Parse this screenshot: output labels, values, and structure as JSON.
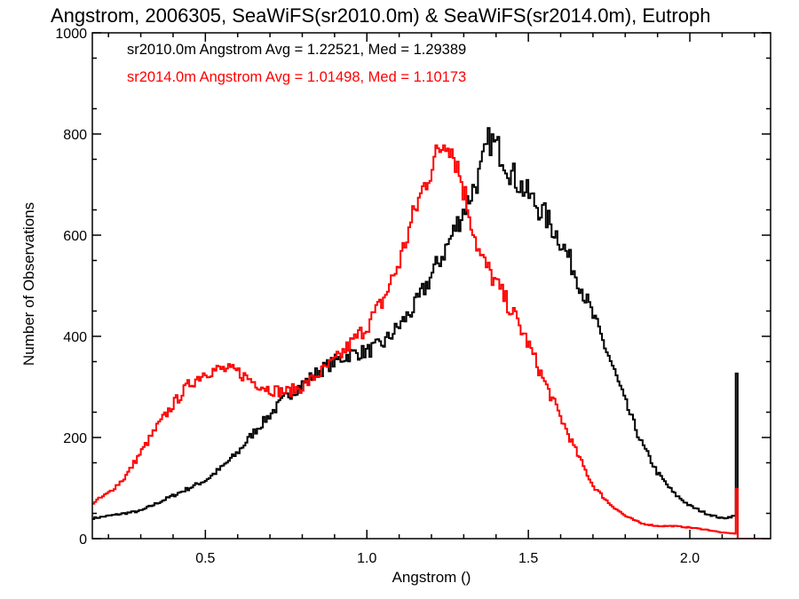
{
  "chart_data": {
    "type": "line",
    "title": "Angstrom, 2006305, SeaWiFS(sr2010.0m) & SeaWiFS(sr2014.0m), Eutroph",
    "xlabel": "Angstrom ()",
    "ylabel": "Number of Observations",
    "xlim": [
      0.15,
      2.25
    ],
    "ylim": [
      0,
      1000
    ],
    "x_ticks": [
      "0.5",
      "1.0",
      "1.5",
      "2.0"
    ],
    "y_ticks": [
      "0",
      "200",
      "400",
      "600",
      "800",
      "1000"
    ],
    "grid": false,
    "step": true,
    "annotations": [
      {
        "text": "sr2010.0m Angstrom Avg = 1.22521, Med = 1.29389",
        "color": "#000000"
      },
      {
        "text": "sr2014.0m Angstrom Avg = 1.01498, Med = 1.10173",
        "color": "#ff0000"
      }
    ],
    "series": [
      {
        "color": "#000000",
        "points": [
          [
            0.15,
            40
          ],
          [
            0.2,
            45
          ],
          [
            0.25,
            50
          ],
          [
            0.3,
            55
          ],
          [
            0.35,
            70
          ],
          [
            0.4,
            85
          ],
          [
            0.45,
            100
          ],
          [
            0.5,
            115
          ],
          [
            0.55,
            140
          ],
          [
            0.6,
            170
          ],
          [
            0.65,
            210
          ],
          [
            0.7,
            245
          ],
          [
            0.75,
            280
          ],
          [
            0.8,
            305
          ],
          [
            0.85,
            330
          ],
          [
            0.9,
            350
          ],
          [
            0.95,
            365
          ],
          [
            1.0,
            370
          ],
          [
            1.05,
            385
          ],
          [
            1.1,
            420
          ],
          [
            1.15,
            460
          ],
          [
            1.2,
            520
          ],
          [
            1.25,
            580
          ],
          [
            1.3,
            650
          ],
          [
            1.35,
            720
          ],
          [
            1.38,
            790
          ],
          [
            1.42,
            760
          ],
          [
            1.45,
            720
          ],
          [
            1.5,
            680
          ],
          [
            1.55,
            640
          ],
          [
            1.6,
            590
          ],
          [
            1.65,
            520
          ],
          [
            1.7,
            440
          ],
          [
            1.75,
            360
          ],
          [
            1.8,
            270
          ],
          [
            1.85,
            190
          ],
          [
            1.9,
            130
          ],
          [
            1.95,
            90
          ],
          [
            2.0,
            65
          ],
          [
            2.05,
            50
          ],
          [
            2.1,
            40
          ],
          [
            2.14,
            45
          ],
          [
            2.145,
            320
          ],
          [
            2.15,
            0
          ],
          [
            2.25,
            0
          ]
        ]
      },
      {
        "color": "#ff0000",
        "points": [
          [
            0.15,
            70
          ],
          [
            0.2,
            90
          ],
          [
            0.25,
            120
          ],
          [
            0.3,
            170
          ],
          [
            0.35,
            220
          ],
          [
            0.4,
            265
          ],
          [
            0.45,
            305
          ],
          [
            0.5,
            330
          ],
          [
            0.55,
            335
          ],
          [
            0.6,
            330
          ],
          [
            0.65,
            310
          ],
          [
            0.7,
            295
          ],
          [
            0.75,
            290
          ],
          [
            0.8,
            300
          ],
          [
            0.85,
            325
          ],
          [
            0.9,
            350
          ],
          [
            0.95,
            385
          ],
          [
            1.0,
            420
          ],
          [
            1.05,
            470
          ],
          [
            1.1,
            545
          ],
          [
            1.15,
            650
          ],
          [
            1.2,
            735
          ],
          [
            1.23,
            775
          ],
          [
            1.25,
            795
          ],
          [
            1.28,
            740
          ],
          [
            1.3,
            690
          ],
          [
            1.35,
            560
          ],
          [
            1.4,
            505
          ],
          [
            1.45,
            450
          ],
          [
            1.5,
            385
          ],
          [
            1.55,
            310
          ],
          [
            1.6,
            240
          ],
          [
            1.65,
            170
          ],
          [
            1.7,
            105
          ],
          [
            1.75,
            70
          ],
          [
            1.8,
            45
          ],
          [
            1.85,
            30
          ],
          [
            1.9,
            25
          ],
          [
            1.95,
            25
          ],
          [
            2.0,
            22
          ],
          [
            2.05,
            18
          ],
          [
            2.1,
            12
          ],
          [
            2.14,
            10
          ],
          [
            2.145,
            100
          ],
          [
            2.15,
            0
          ],
          [
            2.25,
            0
          ]
        ]
      }
    ]
  }
}
